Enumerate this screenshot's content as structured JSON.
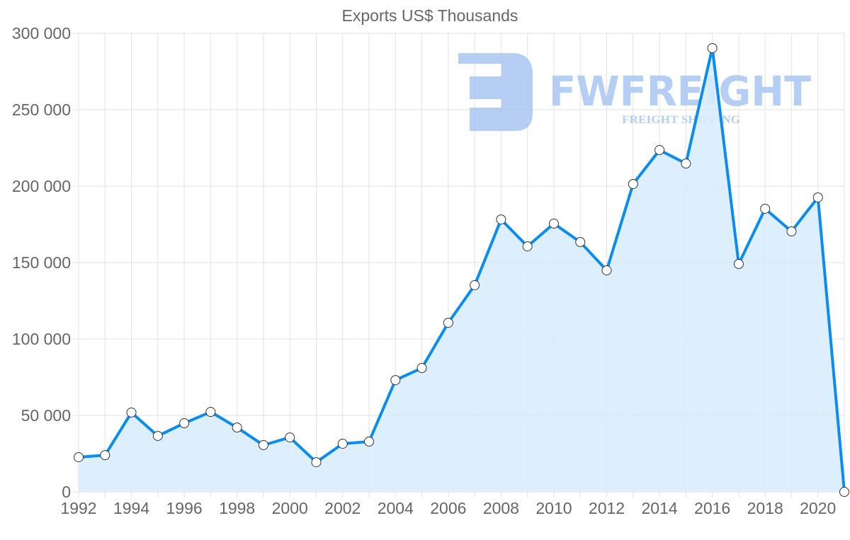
{
  "chart_data": {
    "type": "area",
    "title": "Exports US$ Thousands",
    "xlabel": "",
    "ylabel": "",
    "x": [
      1992,
      1993,
      1994,
      1995,
      1996,
      1997,
      1998,
      1999,
      2000,
      2001,
      2002,
      2003,
      2004,
      2005,
      2006,
      2007,
      2008,
      2009,
      2010,
      2011,
      2012,
      2013,
      2014,
      2015,
      2016,
      2017,
      2018,
      2019,
      2020,
      2021
    ],
    "series": [
      {
        "name": "Exports US$ Thousands",
        "values": [
          22700,
          24000,
          51900,
          36600,
          44900,
          52300,
          42100,
          30600,
          35600,
          19400,
          31500,
          32900,
          73100,
          81000,
          110600,
          135200,
          178200,
          160600,
          175500,
          163400,
          144900,
          201400,
          223600,
          214800,
          290300,
          149100,
          185200,
          170400,
          192600,
          0
        ]
      }
    ],
    "x_tick_labels": [
      "1992",
      "1994",
      "1996",
      "1998",
      "2000",
      "2002",
      "2004",
      "2006",
      "2008",
      "2010",
      "2012",
      "2014",
      "2016",
      "2018",
      "2020"
    ],
    "y_tick_labels": [
      "0",
      "50 000",
      "100 000",
      "150 000",
      "200 000",
      "250 000",
      "300 000"
    ],
    "y_ticks": [
      0,
      50000,
      100000,
      150000,
      200000,
      250000,
      300000
    ],
    "ylim": [
      0,
      300000
    ],
    "xlim": [
      1992,
      2021
    ],
    "grid": true,
    "legend": "none",
    "colors": {
      "line": "#0a8cf0",
      "fill": "#d9ecfc",
      "watermark": "#a9c6f2"
    },
    "watermark": {
      "brand": "FWFREIGHT",
      "tagline": "FREIGHT SHIPPING"
    }
  }
}
